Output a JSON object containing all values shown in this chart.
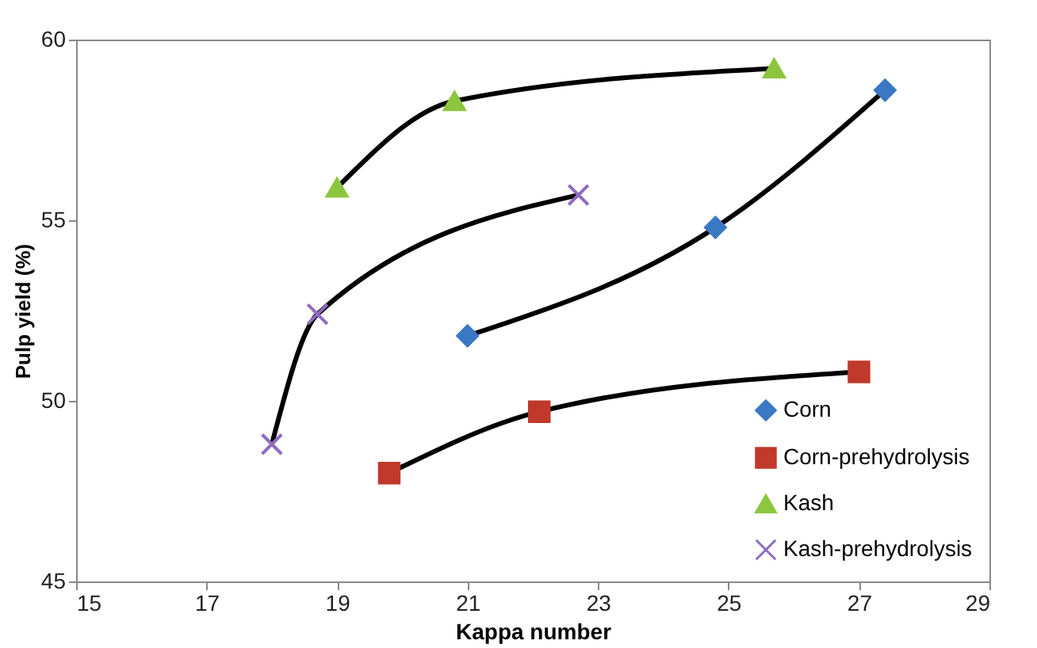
{
  "chart_data": {
    "type": "line",
    "xlabel": "Kappa number",
    "ylabel": "Pulp yield (%)",
    "xlim": [
      15,
      29
    ],
    "xticks": [
      15,
      17,
      19,
      21,
      23,
      25,
      27,
      29
    ],
    "ylim": [
      45,
      60
    ],
    "yticks": [
      45,
      50,
      55,
      60
    ],
    "grid": false,
    "legend": "bottom right",
    "series": [
      {
        "name": "Corn",
        "color": "#3a78c4",
        "marker": "diamond",
        "x": [
          21.0,
          24.8,
          27.4
        ],
        "values": [
          51.8,
          54.8,
          58.6
        ]
      },
      {
        "name": "Corn-prehydrolysis",
        "color": "#c0392b",
        "marker": "square",
        "x": [
          19.8,
          22.1,
          27.0
        ],
        "values": [
          48.0,
          49.7,
          50.8
        ]
      },
      {
        "name": "Kash",
        "color": "#8cc63f",
        "marker": "triangle",
        "x": [
          19.0,
          20.8,
          25.7
        ],
        "values": [
          55.9,
          58.3,
          59.2
        ]
      },
      {
        "name": "Kash-prehydrolysis",
        "color": "#8e6bbf",
        "marker": "cross",
        "x": [
          18.0,
          18.7,
          22.7
        ],
        "values": [
          48.8,
          52.4,
          55.7
        ]
      }
    ]
  }
}
